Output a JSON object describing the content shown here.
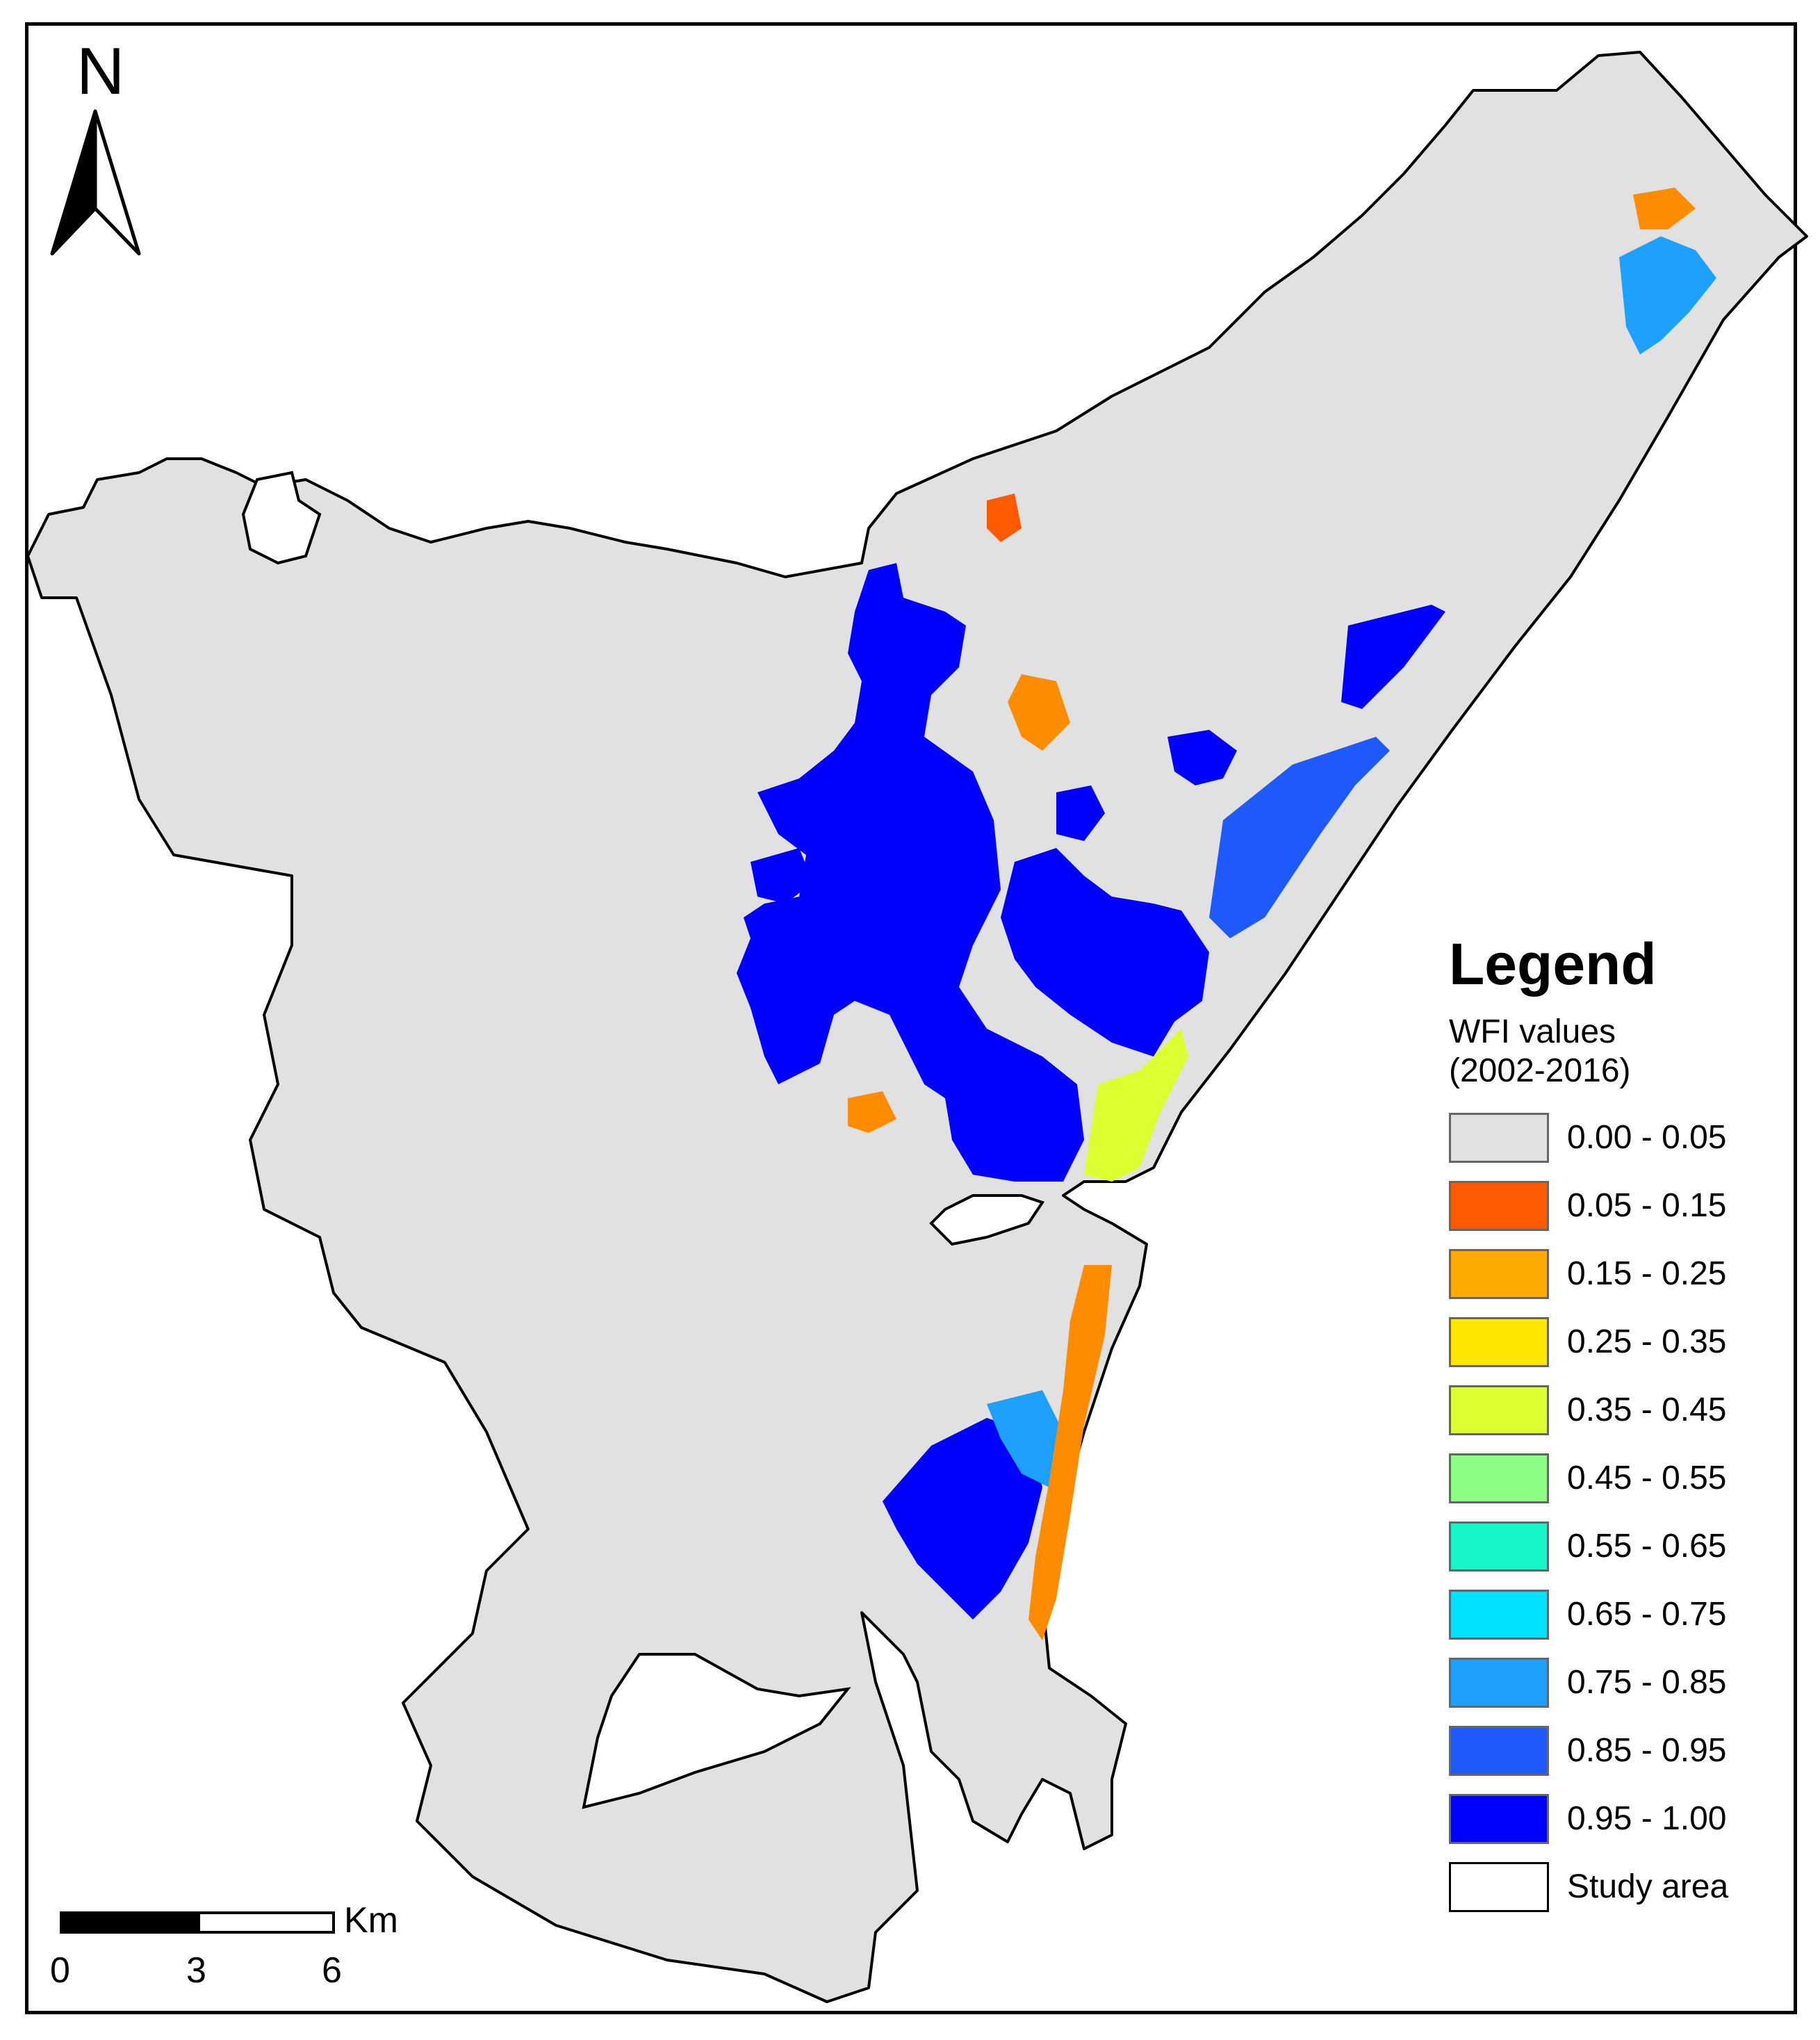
{
  "north_arrow": {
    "letter": "N"
  },
  "scale_bar": {
    "unit": "Km",
    "ticks": [
      "0",
      "3",
      "6"
    ]
  },
  "legend": {
    "title": "Legend",
    "subtitle_line1": "WFI values",
    "subtitle_line2": "(2002-2016)",
    "items": [
      {
        "label": "0.00 - 0.05",
        "color": "#e1e1e1"
      },
      {
        "label": "0.05 - 0.15",
        "color": "#ff5a00"
      },
      {
        "label": "0.15 - 0.25",
        "color": "#ffaa00"
      },
      {
        "label": "0.25 - 0.35",
        "color": "#ffe600"
      },
      {
        "label": "0.35 - 0.45",
        "color": "#dcff32"
      },
      {
        "label": "0.45 - 0.55",
        "color": "#8cff82"
      },
      {
        "label": "0.55 - 0.65",
        "color": "#14f5c8"
      },
      {
        "label": "0.65 - 0.75",
        "color": "#00e1ff"
      },
      {
        "label": "0.75 - 0.85",
        "color": "#1ea0ff"
      },
      {
        "label": "0.85 - 0.95",
        "color": "#1e5aff"
      },
      {
        "label": "0.95 - 1.00",
        "color": "#0000ff"
      },
      {
        "label": "Study area",
        "color": "#ffffff"
      }
    ]
  },
  "map_colors": {
    "land": "#e1e1e1",
    "water_high": "#0000ff",
    "water_mid": "#1e5aff",
    "light_blue": "#1ea0ff",
    "orange": "#ff8c00",
    "red_orange": "#ff5a00",
    "yellow_green": "#dcff32",
    "cyan": "#00e1ff"
  }
}
